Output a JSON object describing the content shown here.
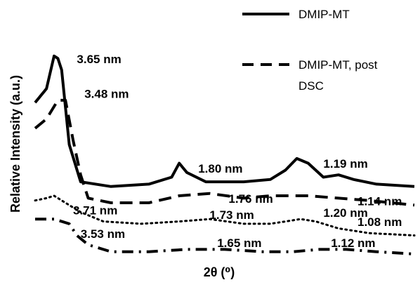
{
  "chart_data": {
    "type": "line",
    "xlabel": "2θ (⁰)",
    "ylabel": "Relative Intensity (a.u.)",
    "grid": false,
    "legend_position": "top-right",
    "legend": [
      {
        "label": "DMIP-MT",
        "dash": "solid"
      },
      {
        "label_lines": [
          "DMIP-MT, post",
          "DSC"
        ],
        "dash": "dashed"
      }
    ],
    "colors": {
      "line": "#000000",
      "background": "#ffffff"
    },
    "series": [
      {
        "id": "s1",
        "dash": "solid",
        "values": [
          [
            0.0,
            0.68
          ],
          [
            0.03,
            0.74
          ],
          [
            0.05,
            0.88
          ],
          [
            0.06,
            0.87
          ],
          [
            0.07,
            0.82
          ],
          [
            0.09,
            0.5
          ],
          [
            0.12,
            0.34
          ],
          [
            0.2,
            0.32
          ],
          [
            0.3,
            0.33
          ],
          [
            0.36,
            0.36
          ],
          [
            0.38,
            0.42
          ],
          [
            0.4,
            0.38
          ],
          [
            0.45,
            0.34
          ],
          [
            0.55,
            0.34
          ],
          [
            0.62,
            0.35
          ],
          [
            0.66,
            0.39
          ],
          [
            0.69,
            0.44
          ],
          [
            0.72,
            0.42
          ],
          [
            0.76,
            0.36
          ],
          [
            0.8,
            0.37
          ],
          [
            0.84,
            0.35
          ],
          [
            0.9,
            0.33
          ],
          [
            1.0,
            0.32
          ]
        ]
      },
      {
        "id": "s2",
        "dash": "dashed",
        "values": [
          [
            0.0,
            0.57
          ],
          [
            0.03,
            0.61
          ],
          [
            0.06,
            0.69
          ],
          [
            0.08,
            0.69
          ],
          [
            0.1,
            0.52
          ],
          [
            0.12,
            0.37
          ],
          [
            0.14,
            0.27
          ],
          [
            0.2,
            0.25
          ],
          [
            0.3,
            0.25
          ],
          [
            0.38,
            0.28
          ],
          [
            0.46,
            0.29
          ],
          [
            0.55,
            0.27
          ],
          [
            0.62,
            0.28
          ],
          [
            0.66,
            0.28
          ],
          [
            0.72,
            0.28
          ],
          [
            0.8,
            0.27
          ],
          [
            0.88,
            0.26
          ],
          [
            1.0,
            0.24
          ]
        ]
      },
      {
        "id": "s3",
        "dash": "dotted",
        "values": [
          [
            0.0,
            0.26
          ],
          [
            0.03,
            0.27
          ],
          [
            0.05,
            0.28
          ],
          [
            0.08,
            0.25
          ],
          [
            0.12,
            0.21
          ],
          [
            0.18,
            0.17
          ],
          [
            0.28,
            0.16
          ],
          [
            0.38,
            0.17
          ],
          [
            0.46,
            0.18
          ],
          [
            0.55,
            0.16
          ],
          [
            0.62,
            0.16
          ],
          [
            0.66,
            0.17
          ],
          [
            0.7,
            0.18
          ],
          [
            0.74,
            0.17
          ],
          [
            0.8,
            0.14
          ],
          [
            0.88,
            0.12
          ],
          [
            1.0,
            0.11
          ]
        ]
      },
      {
        "id": "s4",
        "dash": "dashdot",
        "values": [
          [
            0.0,
            0.18
          ],
          [
            0.05,
            0.18
          ],
          [
            0.09,
            0.16
          ],
          [
            0.11,
            0.11
          ],
          [
            0.14,
            0.07
          ],
          [
            0.2,
            0.04
          ],
          [
            0.3,
            0.04
          ],
          [
            0.4,
            0.05
          ],
          [
            0.5,
            0.05
          ],
          [
            0.6,
            0.04
          ],
          [
            0.68,
            0.04
          ],
          [
            0.75,
            0.05
          ],
          [
            0.82,
            0.05
          ],
          [
            0.9,
            0.04
          ],
          [
            1.0,
            0.03
          ]
        ]
      }
    ],
    "annotations": [
      {
        "text": "3.65 nm",
        "x": 0.11,
        "y": 0.85
      },
      {
        "text": "3.48 nm",
        "x": 0.13,
        "y": 0.7
      },
      {
        "text": "1.80 nm",
        "x": 0.43,
        "y": 0.38
      },
      {
        "text": "1.19 nm",
        "x": 0.76,
        "y": 0.4
      },
      {
        "text": "1.76 nm",
        "x": 0.51,
        "y": 0.25
      },
      {
        "text": "1.14 nm",
        "x": 0.85,
        "y": 0.24
      },
      {
        "text": "3.71 nm",
        "x": 0.1,
        "y": 0.2
      },
      {
        "text": "1.73 nm",
        "x": 0.46,
        "y": 0.18
      },
      {
        "text": "1.20 nm",
        "x": 0.76,
        "y": 0.19
      },
      {
        "text": "1.08 nm",
        "x": 0.85,
        "y": 0.15
      },
      {
        "text": "3.53 nm",
        "x": 0.12,
        "y": 0.1
      },
      {
        "text": "1.65 nm",
        "x": 0.48,
        "y": 0.06
      },
      {
        "text": "1.12 nm",
        "x": 0.78,
        "y": 0.06
      }
    ]
  }
}
